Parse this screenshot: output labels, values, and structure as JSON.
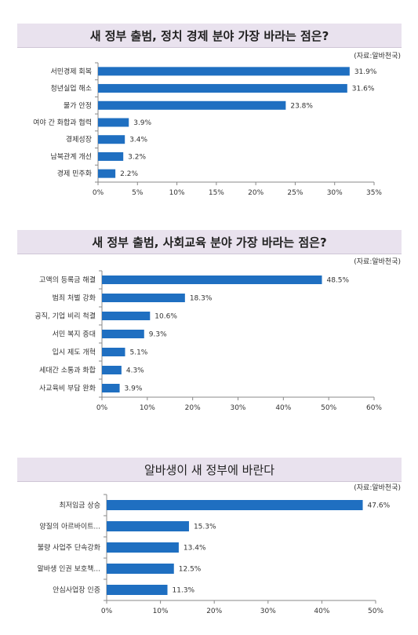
{
  "chart_data": [
    {
      "type": "bar",
      "orientation": "horizontal",
      "title": "새 정부 출범, 정치 경제 분야 가장 바라는 점은?",
      "source": "(자료:알바천국)",
      "categories": [
        "서민경제 회복",
        "청년실업 해소",
        "물가 안정",
        "여야 간 화합과 협력",
        "경제성장",
        "남북관계 개선",
        "경제 민주화"
      ],
      "values": [
        31.9,
        31.6,
        23.8,
        3.9,
        3.4,
        3.2,
        2.2
      ],
      "value_labels": [
        "31.9%",
        "31.6%",
        "23.8%",
        "3.9%",
        "3.4%",
        "3.2%",
        "2.2%"
      ],
      "xlim": [
        0,
        35
      ],
      "ticks": [
        "0%",
        "5%",
        "10%",
        "15%",
        "20%",
        "25%",
        "30%",
        "35%"
      ],
      "bar_color": "#1f6fc1"
    },
    {
      "type": "bar",
      "orientation": "horizontal",
      "title": "새 정부 출범, 사회교육 분야 가장 바라는 점은?",
      "source": "(자료:알바천국)",
      "categories": [
        "고액의 등록금 해결",
        "범죄 처벌 강화",
        "공직, 기업 비리 척결",
        "서민 복지 증대",
        "입시 제도 개혁",
        "세대간 소통과 화합",
        "사교육비 부담 완화"
      ],
      "values": [
        48.5,
        18.3,
        10.6,
        9.3,
        5.1,
        4.3,
        3.9
      ],
      "value_labels": [
        "48.5%",
        "18.3%",
        "10.6%",
        "9.3%",
        "5.1%",
        "4.3%",
        "3.9%"
      ],
      "xlim": [
        0,
        60
      ],
      "ticks": [
        "0%",
        "10%",
        "20%",
        "30%",
        "40%",
        "50%",
        "60%"
      ],
      "bar_color": "#1f6fc1"
    },
    {
      "type": "bar",
      "orientation": "horizontal",
      "title": "알바생이 새 정부에 바란다",
      "source": "(자료:알바천국)",
      "categories": [
        "최저임금 상승",
        "양질의 아르바이트...",
        "불량 사업주 단속강화",
        "알바생 인권 보호책...",
        "안심사업장 인증"
      ],
      "values": [
        47.6,
        15.3,
        13.4,
        12.5,
        11.3
      ],
      "value_labels": [
        "47.6%",
        "15.3%",
        "13.4%",
        "12.5%",
        "11.3%"
      ],
      "xlim": [
        0,
        50
      ],
      "ticks": [
        "0%",
        "10%",
        "20%",
        "30%",
        "40%",
        "50%"
      ],
      "bar_color": "#1f6fc1"
    }
  ]
}
